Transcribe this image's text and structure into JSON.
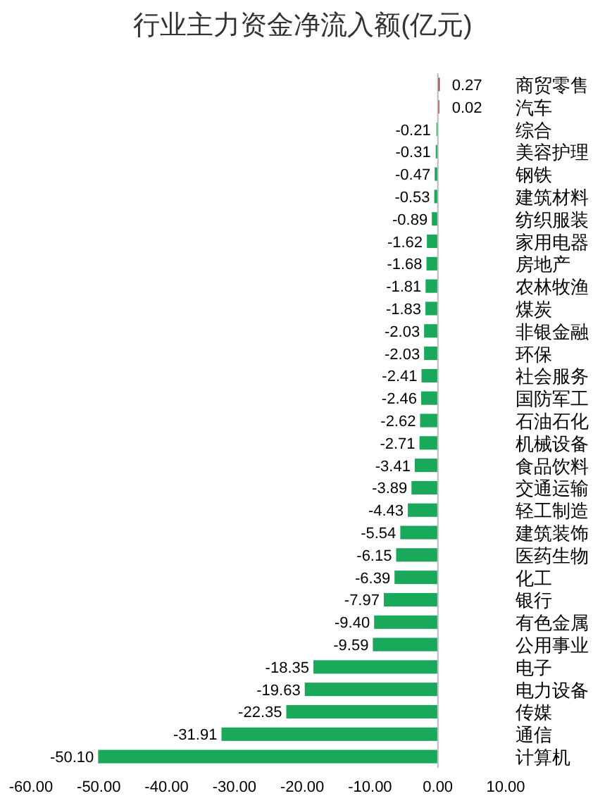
{
  "chart_data": {
    "type": "bar",
    "orientation": "horizontal",
    "title": "行业主力资金净流入额(亿元)",
    "categories": [
      "商贸零售",
      "汽车",
      "综合",
      "美容护理",
      "钢铁",
      "建筑材料",
      "纺织服装",
      "家用电器",
      "房地产",
      "农林牧渔",
      "煤炭",
      "非银金融",
      "环保",
      "社会服务",
      "国防军工",
      "石油石化",
      "机械设备",
      "食品饮料",
      "交通运输",
      "轻工制造",
      "建筑装饰",
      "医药生物",
      "化工",
      "银行",
      "有色金属",
      "公用事业",
      "电子",
      "电力设备",
      "传媒",
      "通信",
      "计算机"
    ],
    "values": [
      0.27,
      0.02,
      -0.21,
      -0.31,
      -0.47,
      -0.53,
      -0.89,
      -1.62,
      -1.68,
      -1.81,
      -1.83,
      -2.03,
      -2.03,
      -2.41,
      -2.46,
      -2.62,
      -2.71,
      -3.41,
      -3.89,
      -4.43,
      -5.54,
      -6.15,
      -6.39,
      -7.97,
      -9.4,
      -9.59,
      -18.35,
      -19.63,
      -22.35,
      -31.91,
      -50.1
    ],
    "value_labels": [
      "0.27",
      "0.02",
      "-0.21",
      "-0.31",
      "-0.47",
      "-0.53",
      "-0.89",
      "-1.62",
      "-1.68",
      "-1.81",
      "-1.83",
      "-2.03",
      "-2.03",
      "-2.41",
      "-2.46",
      "-2.62",
      "-2.71",
      "-3.41",
      "-3.89",
      "-4.43",
      "-5.54",
      "-6.15",
      "-6.39",
      "-7.97",
      "-9.40",
      "-9.59",
      "-18.35",
      "-19.63",
      "-22.35",
      "-31.91",
      "-50.10"
    ],
    "colors": [
      "#c0151b",
      "#c0151b",
      "#1aa85a",
      "#1aa85a",
      "#1aa85a",
      "#1aa85a",
      "#1aa85a",
      "#1aa85a",
      "#1aa85a",
      "#1aa85a",
      "#1aa85a",
      "#1aa85a",
      "#1aa85a",
      "#1aa85a",
      "#1aa85a",
      "#1aa85a",
      "#1aa85a",
      "#1aa85a",
      "#1aa85a",
      "#1aa85a",
      "#1aa85a",
      "#1aa85a",
      "#1aa85a",
      "#1aa85a",
      "#1aa85a",
      "#1aa85a",
      "#1aa85a",
      "#1aa85a",
      "#1aa85a",
      "#1aa85a",
      "#1aa85a"
    ],
    "xlim": [
      -60,
      10
    ],
    "xticks": [
      {
        "value": -60,
        "label": "-60.00"
      },
      {
        "value": -50,
        "label": "-50.00"
      },
      {
        "value": -40,
        "label": "-40.00"
      },
      {
        "value": -30,
        "label": "-30.00"
      },
      {
        "value": -20,
        "label": "-20.00"
      },
      {
        "value": -10,
        "label": "-10.00"
      },
      {
        "value": 0,
        "label": "0.00"
      },
      {
        "value": 10,
        "label": "10.00"
      }
    ]
  }
}
